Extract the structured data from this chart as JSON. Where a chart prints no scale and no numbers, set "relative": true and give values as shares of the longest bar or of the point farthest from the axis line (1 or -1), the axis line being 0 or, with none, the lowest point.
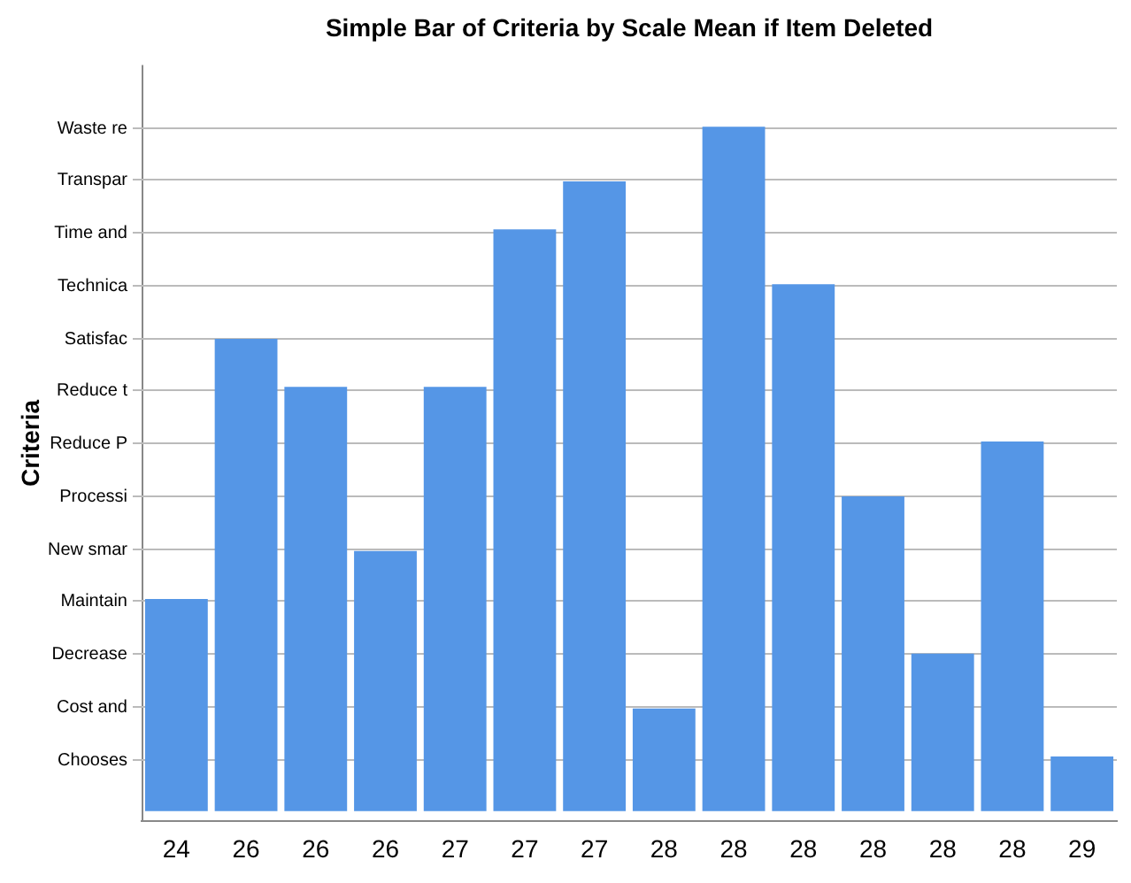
{
  "chart_data": {
    "type": "bar",
    "title": "Simple Bar of Criteria by Scale Mean if Item Deleted",
    "ylabel": "Criteria",
    "categories": [
      "24",
      "26",
      "26",
      "26",
      "27",
      "27",
      "27",
      "28",
      "28",
      "28",
      "28",
      "28",
      "28",
      "29"
    ],
    "values": [
      0.31,
      0.69,
      0.62,
      0.38,
      0.62,
      0.85,
      0.92,
      0.15,
      1,
      0.77,
      0.46,
      0.23,
      0.54,
      0.08
    ],
    "color": "#5596e6",
    "relative": true,
    "annotations": [
      "Chooses",
      "Cost and",
      "Decrease",
      "Maintain",
      "New smar",
      "Processi",
      "Reduce P",
      "Reduce t",
      "Satisfac",
      "Technica",
      "Time and",
      "Transpar",
      "Waste re"
    ],
    "grid": "y",
    "legend": false
  }
}
